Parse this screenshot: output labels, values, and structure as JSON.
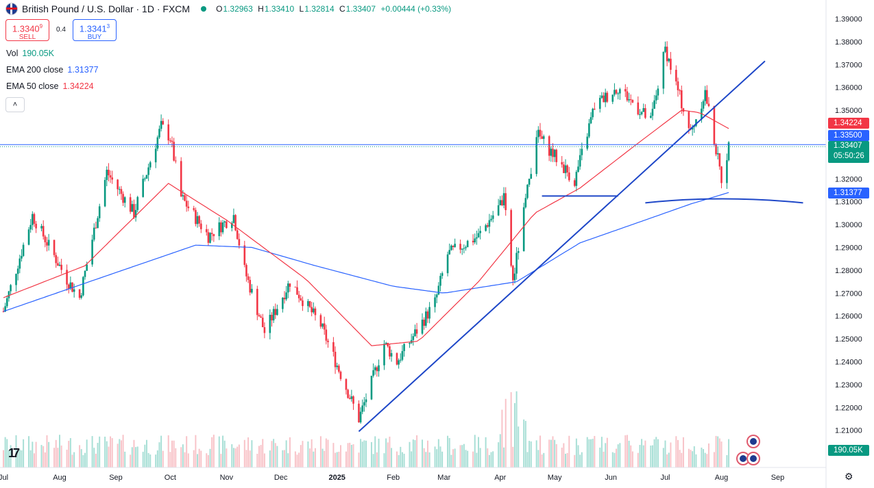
{
  "header": {
    "title": "British Pound / U.S. Dollar · 1D · FXCM",
    "ohlc": {
      "o_label": "O",
      "o": "1.32963",
      "h_label": "H",
      "h": "1.33410",
      "l_label": "L",
      "l": "1.32814",
      "c_label": "C",
      "c": "1.33407",
      "change": "+0.00444 (+0.33%)"
    }
  },
  "trade": {
    "sell_price": "1.3340",
    "sell_sup": "9",
    "sell_label": "SELL",
    "spread": "0.4",
    "buy_price": "1.3341",
    "buy_sup": "3",
    "buy_label": "BUY"
  },
  "legend": [
    {
      "name": "Vol",
      "value": "190.05K",
      "color": "#089981"
    },
    {
      "name": "EMA 200 close",
      "value": "1.31377",
      "color": "#2962ff"
    },
    {
      "name": "EMA 50 close",
      "value": "1.34224",
      "color": "#f23645"
    }
  ],
  "collapse_icon": "chevron-up",
  "price_labels": [
    {
      "text": "1.34224",
      "value": 1.34224,
      "color": "#f23645"
    },
    {
      "text": "1.33500",
      "value": 1.335,
      "color": "#2962ff"
    },
    {
      "text": "1.33407",
      "value": 1.33407,
      "color": "#089981"
    },
    {
      "text": "05:50:26",
      "value": 1.331,
      "color": "#089981"
    },
    {
      "text": "1.31377",
      "value": 1.31377,
      "color": "#2962ff"
    },
    {
      "text": "190.05K",
      "value": null,
      "color": "#089981"
    }
  ],
  "chart_data": {
    "type": "candlestick",
    "symbol": "GBPUSD",
    "ylim": [
      1.2,
      1.395
    ],
    "y_ticks": [
      "1.21000",
      "1.22000",
      "1.23000",
      "1.24000",
      "1.25000",
      "1.26000",
      "1.27000",
      "1.28000",
      "1.29000",
      "1.30000",
      "1.31000",
      "1.32000",
      "1.33000",
      "1.34000",
      "1.35000",
      "1.36000",
      "1.37000",
      "1.38000",
      "1.39000"
    ],
    "x_ticks": [
      "Jul",
      "Aug",
      "Sep",
      "Oct",
      "Nov",
      "Dec",
      "2025",
      "Feb",
      "Mar",
      "Apr",
      "May",
      "Jun",
      "Jul",
      "Aug",
      "Sep"
    ],
    "price_path": [
      [
        "2024-07-01",
        1.262
      ],
      [
        "2024-07-17",
        1.304
      ],
      [
        "2024-08-05",
        1.276
      ],
      [
        "2024-08-12",
        1.268
      ],
      [
        "2024-08-27",
        1.323
      ],
      [
        "2024-09-11",
        1.305
      ],
      [
        "2024-09-26",
        1.343
      ],
      [
        "2024-10-01",
        1.338
      ],
      [
        "2024-10-07",
        1.312
      ],
      [
        "2024-10-22",
        1.295
      ],
      [
        "2024-11-05",
        1.304
      ],
      [
        "2024-11-11",
        1.28
      ],
      [
        "2024-11-22",
        1.253
      ],
      [
        "2024-12-06",
        1.275
      ],
      [
        "2024-12-23",
        1.256
      ],
      [
        "2025-01-13",
        1.215
      ],
      [
        "2025-01-20",
        1.231
      ],
      [
        "2025-01-27",
        1.248
      ],
      [
        "2025-02-03",
        1.24
      ],
      [
        "2025-02-24",
        1.266
      ],
      [
        "2025-03-03",
        1.287
      ],
      [
        "2025-03-20",
        1.295
      ],
      [
        "2025-04-03",
        1.311
      ],
      [
        "2025-04-08",
        1.275
      ],
      [
        "2025-04-21",
        1.34
      ],
      [
        "2025-05-12",
        1.319
      ],
      [
        "2025-05-23",
        1.352
      ],
      [
        "2025-06-05",
        1.36
      ],
      [
        "2025-06-23",
        1.345
      ],
      [
        "2025-07-01",
        1.377
      ],
      [
        "2025-07-15",
        1.34
      ],
      [
        "2025-07-23",
        1.358
      ],
      [
        "2025-08-01",
        1.32
      ],
      [
        "2025-08-05",
        1.334
      ]
    ],
    "ema50": [
      [
        "2024-07-01",
        1.268
      ],
      [
        "2024-08-15",
        1.282
      ],
      [
        "2024-09-30",
        1.318
      ],
      [
        "2024-11-01",
        1.302
      ],
      [
        "2024-12-15",
        1.276
      ],
      [
        "2025-01-20",
        1.247
      ],
      [
        "2025-02-15",
        1.249
      ],
      [
        "2025-03-20",
        1.275
      ],
      [
        "2025-04-20",
        1.305
      ],
      [
        "2025-05-15",
        1.316
      ],
      [
        "2025-06-15",
        1.335
      ],
      [
        "2025-07-10",
        1.35
      ],
      [
        "2025-07-20",
        1.349
      ],
      [
        "2025-08-05",
        1.342
      ]
    ],
    "ema200": [
      [
        "2024-07-01",
        1.262
      ],
      [
        "2024-09-01",
        1.279
      ],
      [
        "2024-10-15",
        1.291
      ],
      [
        "2024-11-15",
        1.29
      ],
      [
        "2024-12-20",
        1.282
      ],
      [
        "2025-02-01",
        1.273
      ],
      [
        "2025-03-01",
        1.27
      ],
      [
        "2025-04-10",
        1.275
      ],
      [
        "2025-05-15",
        1.292
      ],
      [
        "2025-06-20",
        1.302
      ],
      [
        "2025-07-15",
        1.309
      ],
      [
        "2025-08-05",
        1.314
      ]
    ],
    "volume_note": "Vol 190.05K"
  },
  "drawings": {
    "trendline": "rising trendline from Jan 2025 low",
    "support": "horizontal support near 1.3125",
    "curve": "curved support near 1.311"
  }
}
